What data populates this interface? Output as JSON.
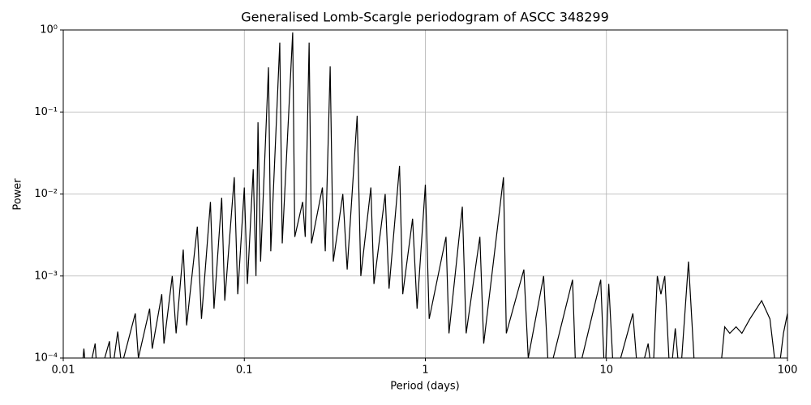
{
  "chart_data": {
    "type": "line",
    "title": "Generalised Lomb-Scargle periodogram of ASCC 348299",
    "x_label": "Period (days)",
    "y_label": "Power",
    "xscale": "log",
    "yscale": "log",
    "grid": true,
    "xlim": [
      0.01,
      100
    ],
    "ylim": [
      0.0001,
      1
    ],
    "xticks": [
      0.01,
      0.1,
      1,
      10,
      100
    ],
    "yticks": [
      {
        "value": 0.0001,
        "label": "10⁻⁴"
      },
      {
        "value": 0.001,
        "label": "10⁻³"
      },
      {
        "value": 0.01,
        "label": "10⁻²"
      },
      {
        "value": 0.1,
        "label": "10⁻¹"
      },
      {
        "value": 1,
        "label": "10⁰"
      }
    ],
    "series": [
      {
        "color": "#000000",
        "x": [
          0.0125,
          0.013,
          0.0135,
          0.015,
          0.0155,
          0.018,
          0.0185,
          0.02,
          0.021,
          0.025,
          0.026,
          0.03,
          0.031,
          0.035,
          0.036,
          0.04,
          0.042,
          0.046,
          0.048,
          0.055,
          0.058,
          0.065,
          0.068,
          0.075,
          0.078,
          0.088,
          0.092,
          0.1,
          0.104,
          0.112,
          0.116,
          0.119,
          0.123,
          0.136,
          0.14,
          0.157,
          0.162,
          0.185,
          0.19,
          0.21,
          0.217,
          0.228,
          0.235,
          0.27,
          0.28,
          0.298,
          0.31,
          0.35,
          0.37,
          0.42,
          0.44,
          0.5,
          0.52,
          0.6,
          0.63,
          0.72,
          0.75,
          0.85,
          0.9,
          1.0,
          1.05,
          1.3,
          1.35,
          1.6,
          1.68,
          2.0,
          2.1,
          2.7,
          2.8,
          3.5,
          3.7,
          4.5,
          4.8,
          6.5,
          6.8,
          9.3,
          9.8,
          10.3,
          11,
          14,
          15,
          17,
          18,
          19.1,
          20,
          21,
          22.5,
          24,
          25.5,
          28.4,
          31,
          42,
          45,
          48,
          52,
          56,
          62,
          72,
          80,
          88,
          95,
          100
        ],
        "values": [
          5e-05,
          0.00013,
          5e-05,
          0.00015,
          5e-05,
          0.00016,
          6e-05,
          0.00021,
          8e-05,
          0.00035,
          0.0001,
          0.0004,
          0.00013,
          0.0006,
          0.00015,
          0.001,
          0.0002,
          0.0021,
          0.00025,
          0.004,
          0.0003,
          0.008,
          0.0004,
          0.009,
          0.0005,
          0.016,
          0.0006,
          0.012,
          0.0008,
          0.02,
          0.001,
          0.075,
          0.0015,
          0.35,
          0.002,
          0.7,
          0.0025,
          0.93,
          0.003,
          0.008,
          0.003,
          0.7,
          0.0025,
          0.012,
          0.002,
          0.36,
          0.0015,
          0.01,
          0.0012,
          0.09,
          0.001,
          0.012,
          0.0008,
          0.01,
          0.0007,
          0.022,
          0.0006,
          0.005,
          0.0004,
          0.013,
          0.0003,
          0.003,
          0.0002,
          0.007,
          0.0002,
          0.003,
          0.00015,
          0.016,
          0.0002,
          0.0012,
          0.0001,
          0.001,
          6e-05,
          0.0009,
          5e-05,
          0.0009,
          5e-05,
          0.0008,
          5e-05,
          0.00035,
          5e-05,
          0.00015,
          5e-05,
          0.001,
          0.0006,
          0.001,
          5e-05,
          0.00023,
          5e-05,
          0.0015,
          5e-05,
          5e-05,
          0.00024,
          0.0002,
          0.00024,
          0.0002,
          0.0003,
          0.0005,
          0.0003,
          5e-05,
          0.0002,
          0.00035
        ]
      }
    ]
  }
}
